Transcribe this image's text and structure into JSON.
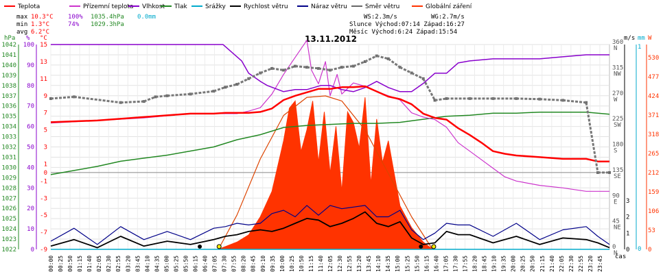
{
  "chart_data": {
    "type": "line",
    "title": "13.11.2012",
    "legend": [
      {
        "name": "Teplota",
        "color": "#ff0000"
      },
      {
        "name": "Přízemní teplota",
        "color": "#cc33cc"
      },
      {
        "name": "Vlhkost",
        "color": "#8800cc"
      },
      {
        "name": "Tlak",
        "color": "#228822"
      },
      {
        "name": "Srážky",
        "color": "#00aacc"
      },
      {
        "name": "Rychlost větru",
        "color": "#000000"
      },
      {
        "name": "Náraz větru",
        "color": "#000088"
      },
      {
        "name": "Směr větru",
        "color": "#666666"
      },
      {
        "name": "Globální záření",
        "color": "#ff3300"
      }
    ],
    "stats": {
      "max_label": "max",
      "max_temp": "10.3°C",
      "max_hum": "100%",
      "max_press": "1035.4hPa",
      "rain": "0.0mm",
      "min_label": "min",
      "min_temp": "1.3°C",
      "min_hum": "74%",
      "min_press": "1029.3hPa",
      "avg_label": "avg",
      "avg_temp": "6.2°C"
    },
    "info": {
      "ws": "WS:2.3m/s",
      "wg": "WG:2.7m/s",
      "sun": "Slunce Východ:07:14  Západ:16:27",
      "moon": "Měsíc  Východ:6:24   Západ:15:54"
    },
    "axes": {
      "hpa_unit": "hPa",
      "pct_unit": "%",
      "c_unit": "°C",
      "ms_unit": "m/s",
      "mm_unit": "mm",
      "w_unit": "W",
      "time_label": "čas",
      "hpa_ticks": [
        "1042",
        "1041",
        "1040",
        "1039",
        "1038",
        "1037",
        "1036",
        "1035",
        "1034",
        "1033",
        "1032",
        "1031",
        "1030",
        "1029",
        "1028",
        "1027",
        "1026",
        "1025",
        "1024",
        "1023",
        "1022"
      ],
      "pct_ticks": [
        "100",
        "90",
        "80",
        "70",
        "60",
        "50",
        "40",
        "30",
        "20",
        "10",
        "0"
      ],
      "c_ticks": [
        "15",
        "13",
        "11",
        "9",
        "7",
        "5",
        "3",
        "1",
        "0",
        "-1",
        "-3",
        "-5",
        "-7",
        "-9"
      ],
      "dir_ticks": [
        {
          "deg": "360",
          "lab": "N"
        },
        {
          "deg": "315",
          "lab": "NW"
        },
        {
          "deg": "270",
          "lab": "W"
        },
        {
          "deg": "225",
          "lab": "SW"
        },
        {
          "deg": "180",
          "lab": "S"
        },
        {
          "deg": "135",
          "lab": "SE"
        },
        {
          "deg": "90",
          "lab": "E"
        },
        {
          "deg": "45",
          "lab": "NE"
        },
        {
          "deg": "0",
          "lab": "N"
        }
      ],
      "ms_ticks": [
        "3",
        "2",
        "1",
        "0"
      ],
      "mm_ticks": [
        "1",
        "0"
      ],
      "w_ticks": [
        "530",
        "477",
        "424",
        "371",
        "318",
        "265",
        "212",
        "159",
        "106",
        "53",
        "0"
      ],
      "x_ticks": [
        "00:00",
        "00:25",
        "00:50",
        "01:15",
        "01:40",
        "02:05",
        "02:30",
        "02:55",
        "03:20",
        "03:45",
        "04:10",
        "04:35",
        "05:00",
        "05:25",
        "05:50",
        "06:15",
        "06:40",
        "07:05",
        "07:30",
        "07:55",
        "08:20",
        "08:45",
        "09:10",
        "09:35",
        "10:00",
        "10:25",
        "10:50",
        "11:15",
        "11:40",
        "12:05",
        "12:30",
        "12:55",
        "13:20",
        "13:45",
        "14:10",
        "14:35",
        "15:00",
        "15:25",
        "15:50",
        "16:15",
        "16:40",
        "17:05",
        "17:30",
        "17:55",
        "18:20",
        "18:45",
        "19:10",
        "19:35",
        "20:00",
        "20:25",
        "20:50",
        "21:15",
        "21:40",
        "22:05",
        "22:30",
        "22:55",
        "23:20",
        "23:45"
      ]
    },
    "series": {
      "temperature_c": {
        "x_h": [
          0,
          2,
          3,
          5,
          6,
          6.5,
          7,
          7.5,
          8,
          8.5,
          9,
          9.5,
          10,
          10.5,
          11,
          11.5,
          12,
          12.5,
          13,
          13.5,
          14,
          14.5,
          15,
          15.5,
          16,
          16.5,
          17,
          17.5,
          18,
          18.5,
          19,
          19.5,
          20,
          21,
          22,
          23,
          23.5,
          24
        ],
        "y": [
          5.9,
          6.1,
          6.3,
          6.7,
          6.9,
          6.9,
          6.9,
          7.0,
          7.0,
          7.0,
          7.1,
          7.5,
          8.5,
          9.0,
          9.4,
          9.8,
          9.8,
          10.0,
          10.0,
          10.1,
          9.5,
          8.9,
          8.6,
          8.0,
          6.9,
          6.4,
          6.2,
          5.2,
          4.4,
          3.5,
          2.5,
          2.2,
          2.0,
          1.8,
          1.6,
          1.6,
          1.3,
          1.3
        ]
      },
      "ground_temp_c": {
        "x_h": [
          0,
          2,
          4,
          6,
          7,
          7.5,
          8,
          8.5,
          9,
          9.5,
          10,
          10.5,
          11,
          11.2,
          11.5,
          11.8,
          12,
          12.3,
          12.5,
          13,
          13.5,
          14,
          14.5,
          15,
          15.5,
          16,
          16.5,
          17,
          17.5,
          18,
          18.5,
          19,
          19.5,
          20,
          21,
          22,
          23,
          24
        ],
        "y": [
          5.8,
          6.1,
          6.4,
          6.9,
          6.9,
          6.9,
          6.9,
          7.2,
          7.6,
          9.2,
          11.5,
          13.5,
          15.5,
          12.0,
          10.4,
          13.0,
          9.0,
          11.5,
          9.2,
          10.5,
          10.1,
          9.5,
          9.0,
          8.5,
          7.0,
          6.5,
          6.2,
          5.3,
          3.5,
          2.5,
          1.5,
          0.5,
          -0.5,
          -1.0,
          -1.5,
          -1.8,
          -2.2,
          -2.2
        ]
      },
      "humidity_pct": {
        "x_h": [
          0,
          4,
          7.4,
          8.2,
          8.5,
          9,
          9.3,
          10,
          10.5,
          11,
          11.3,
          11.6,
          12,
          12.5,
          13,
          13.5,
          14,
          14.5,
          15,
          15.5,
          16,
          16.5,
          17,
          17.5,
          18,
          19,
          20,
          21,
          22,
          23,
          24
        ],
        "y": [
          100,
          100,
          100,
          92,
          86,
          82,
          80,
          77,
          78,
          78,
          79,
          80,
          80,
          78,
          77,
          79,
          82,
          79,
          77,
          77,
          81,
          86,
          86,
          91,
          92,
          93,
          93,
          93,
          94,
          95,
          95
        ]
      },
      "pressure_hpa": {
        "x_h": [
          0,
          1,
          2,
          3,
          4,
          5,
          6,
          7,
          8,
          9,
          10,
          11,
          12,
          13,
          14,
          15,
          16,
          17,
          18,
          19,
          20,
          21,
          22,
          23,
          24
        ],
        "y": [
          1029.3,
          1029.7,
          1030.1,
          1030.6,
          1030.9,
          1031.2,
          1031.6,
          1032.0,
          1032.7,
          1033.2,
          1033.9,
          1034.1,
          1034.2,
          1034.3,
          1034.3,
          1034.4,
          1034.7,
          1035.0,
          1035.1,
          1035.3,
          1035.3,
          1035.4,
          1035.4,
          1035.4,
          1035.2
        ]
      },
      "wind_dir_deg": {
        "x_h": [
          0,
          1,
          3,
          4,
          4.5,
          5,
          6,
          7,
          7.5,
          8,
          8.5,
          9,
          9.5,
          10,
          10.5,
          11,
          11.5,
          12,
          12.5,
          13,
          13.5,
          14,
          14.5,
          15,
          15.5,
          16,
          16.5,
          17,
          18,
          19,
          20,
          21,
          22,
          23,
          23.5,
          24
        ],
        "y": [
          265,
          268,
          258,
          260,
          268,
          270,
          273,
          278,
          285,
          290,
          300,
          310,
          318,
          315,
          322,
          320,
          318,
          315,
          320,
          322,
          330,
          340,
          335,
          320,
          310,
          300,
          262,
          265,
          265,
          265,
          265,
          264,
          262,
          258,
          135,
          135
        ]
      },
      "wind_speed_ms": {
        "x_h": [
          0,
          1,
          2,
          3,
          4,
          5,
          6,
          7,
          7.5,
          8,
          8.5,
          9,
          9.5,
          10,
          10.5,
          11,
          11.5,
          12,
          12.5,
          13,
          13.5,
          14,
          14.5,
          15,
          15.5,
          16,
          16.5,
          17,
          17.5,
          18,
          19,
          20,
          21,
          22,
          23,
          23.5,
          24
        ],
        "y": [
          0.2,
          0.6,
          0.1,
          0.8,
          0.2,
          0.5,
          0.3,
          0.6,
          0.8,
          0.9,
          1.1,
          1.2,
          1.1,
          1.3,
          1.6,
          1.9,
          1.8,
          1.4,
          1.6,
          1.9,
          2.3,
          1.6,
          1.4,
          1.7,
          0.7,
          0.3,
          0.4,
          1.1,
          0.9,
          0.9,
          0.4,
          0.8,
          0.3,
          0.7,
          0.6,
          0.4,
          0.1
        ]
      },
      "wind_gust_ms": {
        "x_h": [
          0,
          1,
          2,
          3,
          4,
          5,
          6,
          7,
          7.5,
          8,
          8.5,
          9,
          9.5,
          10,
          10.5,
          11,
          11.5,
          12,
          12.5,
          13,
          13.5,
          14,
          14.5,
          15,
          15.5,
          16,
          16.5,
          17,
          17.5,
          18,
          19,
          20,
          21,
          22,
          23,
          23.5,
          24
        ],
        "y": [
          0.5,
          1.3,
          0.3,
          1.4,
          0.6,
          1.1,
          0.6,
          1.3,
          1.4,
          1.6,
          1.5,
          1.6,
          2.2,
          2.4,
          2.0,
          2.7,
          2.1,
          2.7,
          2.5,
          2.6,
          2.7,
          2.0,
          2.0,
          2.4,
          1.2,
          0.6,
          1.0,
          1.6,
          1.5,
          1.5,
          0.8,
          1.6,
          0.6,
          1.2,
          1.4,
          0.8,
          0.3
        ]
      },
      "solar_w": {
        "x_h": [
          7.2,
          8,
          8.5,
          9,
          9.5,
          10,
          10.25,
          10.5,
          10.75,
          11,
          11.25,
          11.5,
          11.75,
          12,
          12.25,
          12.5,
          12.75,
          13,
          13.25,
          13.5,
          13.75,
          14,
          14.25,
          14.5,
          15,
          15.5,
          16,
          16.4
        ],
        "y": [
          0,
          20,
          40,
          90,
          160,
          300,
          390,
          410,
          270,
          330,
          410,
          240,
          380,
          210,
          340,
          160,
          380,
          350,
          280,
          420,
          180,
          360,
          240,
          300,
          120,
          60,
          20,
          0
        ]
      },
      "clear_sky_w": {
        "x_h": [
          7.2,
          8,
          9,
          10,
          11,
          11.8,
          12.5,
          13.5,
          14.5,
          15.5,
          16.4
        ],
        "y": [
          0,
          95,
          250,
          370,
          420,
          424,
          410,
          330,
          210,
          90,
          0
        ]
      },
      "rain_mm": {
        "x_h": [
          0,
          24
        ],
        "y": [
          0,
          0
        ]
      }
    },
    "markers": {
      "moonrise_h": 6.4,
      "sunrise_h": 7.23,
      "moonset_h": 15.9,
      "sunset_h": 16.45
    },
    "xlim_h": [
      0,
      24
    ],
    "grid": true
  }
}
